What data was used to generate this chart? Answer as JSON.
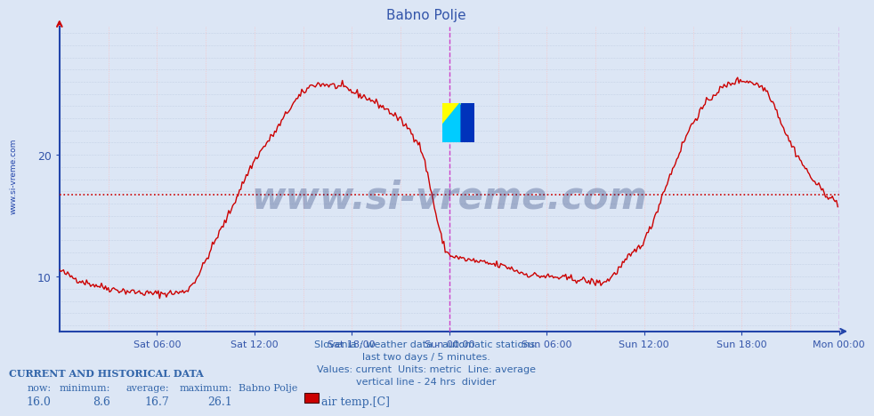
{
  "title": "Babno Polje",
  "title_color": "#3355aa",
  "bg_color": "#dce6f5",
  "plot_bg_color": "#dce6f5",
  "line_color": "#cc0000",
  "avg_line_color": "#cc0000",
  "avg_value": 16.7,
  "ylim": [
    5.5,
    30.5
  ],
  "yticks": [
    10,
    20
  ],
  "xlabel_color": "#3355aa",
  "ylabel_color": "#3355aa",
  "grid_color_h": "#b0c0d8",
  "grid_color_v": "#ffbbbb",
  "vline_color": "#cc44cc",
  "xtick_labels": [
    "Sat 06:00",
    "Sat 12:00",
    "Sat 18:00",
    "Sun 00:00",
    "Sun 06:00",
    "Sun 12:00",
    "Sun 18:00",
    "Mon 00:00"
  ],
  "xtick_positions": [
    72,
    144,
    216,
    288,
    360,
    432,
    504,
    576
  ],
  "total_points": 576,
  "now_val": "16.0",
  "min_val": "8.6",
  "avg_val": "16.7",
  "max_val": "26.1",
  "legend_label": "air temp.[C]",
  "legend_color": "#cc0000",
  "footer_lines": [
    "Slovenia / weather data - automatic stations.",
    "last two days / 5 minutes.",
    "Values: current  Units: metric  Line: average",
    "vertical line - 24 hrs  divider"
  ],
  "footer_color": "#3366aa",
  "watermark": "www.si-vreme.com",
  "watermark_color": "#1a3070",
  "ylabel_text": "www.si-vreme.com",
  "current_data_label": "CURRENT AND HISTORICAL DATA",
  "spine_color": "#2244aa",
  "temp_profile_x": [
    0,
    20,
    50,
    72,
    90,
    120,
    144,
    160,
    175,
    190,
    210,
    216,
    230,
    250,
    265,
    288,
    310,
    330,
    345,
    360,
    380,
    400,
    420,
    432,
    450,
    470,
    490,
    504,
    520,
    540,
    560,
    576
  ],
  "temp_profile_y": [
    10.5,
    9.5,
    8.8,
    8.6,
    8.7,
    14.0,
    19.5,
    22.0,
    24.5,
    25.8,
    25.5,
    25.2,
    24.5,
    23.0,
    21.0,
    11.8,
    11.2,
    10.8,
    10.2,
    10.0,
    9.8,
    9.5,
    11.5,
    13.0,
    18.0,
    23.0,
    25.5,
    26.1,
    25.5,
    21.0,
    17.5,
    16.0
  ]
}
